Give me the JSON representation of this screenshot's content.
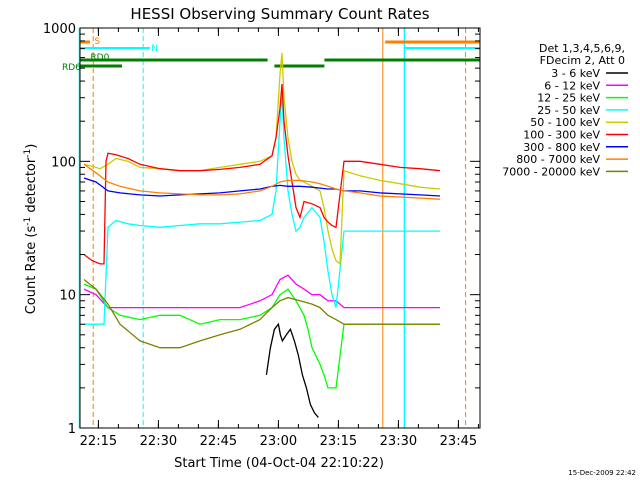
{
  "chart_data": {
    "type": "line",
    "title": "HESSI Observing Summary Count Rates",
    "xlabel": "Start Time (04-Oct-04 22:10:22)",
    "ylabel_main": "Count Rate (s",
    "ylabel_sup1": "-1",
    "ylabel_mid": " detector",
    "ylabel_sup2": "-1",
    "ylabel_end": ")",
    "yscale": "log",
    "ylim": [
      1,
      1000
    ],
    "xlim_minutes": [
      0,
      100
    ],
    "x_ticks": [
      {
        "m": 4.6,
        "label": "22:15"
      },
      {
        "m": 19.6,
        "label": "22:30"
      },
      {
        "m": 34.6,
        "label": "22:45"
      },
      {
        "m": 49.6,
        "label": "23:00"
      },
      {
        "m": 64.6,
        "label": "23:15"
      },
      {
        "m": 79.6,
        "label": "23:30"
      },
      {
        "m": 94.6,
        "label": "23:45"
      }
    ],
    "y_ticks": [
      {
        "v": 1,
        "label": "1"
      },
      {
        "v": 10,
        "label": "10"
      },
      {
        "v": 100,
        "label": "100"
      },
      {
        "v": 1000,
        "label": "1000"
      }
    ],
    "legend_header": [
      "Det 1,3,4,5,6,9,",
      "FDecim 2, Att 0"
    ],
    "series": [
      {
        "name": "3 - 6 keV",
        "color": "#000000",
        "x": [
          46.6,
          47.6,
          48.6,
          49.6,
          50.1,
          50.6,
          51.6,
          52.6,
          53.6,
          54.6,
          55.6,
          56.6,
          57.6,
          58.6,
          59.6
        ],
        "y": [
          2.5,
          4.0,
          5.5,
          6.0,
          5.0,
          4.5,
          5.0,
          5.5,
          4.5,
          3.5,
          2.5,
          2.0,
          1.5,
          1.3,
          1.2
        ]
      },
      {
        "name": "6 - 12 keV",
        "color": "#ff00ff",
        "x": [
          1,
          4,
          7,
          10,
          15,
          20,
          25,
          30,
          35,
          40,
          45,
          48,
          50,
          52,
          54,
          56,
          58,
          60,
          62,
          64,
          66,
          70,
          75,
          80,
          85,
          90
        ],
        "y": [
          11,
          10,
          8,
          8,
          8,
          8,
          8,
          8,
          8,
          8,
          9,
          10,
          13,
          14,
          12,
          11,
          10,
          10,
          9,
          9,
          8,
          8,
          8,
          8,
          8,
          8
        ]
      },
      {
        "name": "12 - 25 keV",
        "color": "#00ff00",
        "x": [
          1,
          4,
          7,
          10,
          15,
          20,
          25,
          30,
          35,
          40,
          45,
          48,
          50,
          52,
          54,
          56,
          57,
          58,
          60,
          61,
          62,
          64,
          66,
          70,
          75,
          80,
          85,
          90
        ],
        "y": [
          12,
          11,
          8,
          7,
          6.5,
          7,
          7,
          6,
          6.5,
          6.5,
          7,
          8,
          10,
          11,
          9,
          7,
          5.5,
          4,
          3,
          2.5,
          2,
          2,
          6,
          6,
          6,
          6,
          6,
          6
        ]
      },
      {
        "name": "25 - 50 keV",
        "color": "#00ffff",
        "x": [
          1,
          3,
          5,
          6,
          7,
          9,
          12,
          15,
          20,
          25,
          30,
          35,
          40,
          45,
          48,
          49,
          50,
          50.5,
          51,
          52,
          53,
          54,
          55,
          56,
          58,
          60,
          61,
          62,
          63,
          64,
          66,
          70,
          75,
          80,
          85,
          90
        ],
        "y": [
          6,
          6,
          6,
          6,
          32,
          36,
          34,
          33,
          32,
          33,
          34,
          34,
          35,
          36,
          40,
          60,
          200,
          320,
          150,
          60,
          40,
          30,
          32,
          38,
          45,
          38,
          25,
          15,
          10,
          8,
          30,
          30,
          30,
          30,
          30,
          30
        ]
      },
      {
        "name": "50 - 100 keV",
        "color": "#cccc00",
        "x": [
          1,
          3,
          5,
          7,
          9,
          12,
          15,
          20,
          25,
          30,
          35,
          40,
          45,
          48,
          49,
          50,
          50.5,
          51,
          52,
          53,
          54,
          55,
          56,
          58,
          60,
          61,
          62,
          63,
          64,
          65,
          66,
          70,
          75,
          80,
          85,
          90
        ],
        "y": [
          95,
          92,
          88,
          95,
          105,
          100,
          90,
          88,
          85,
          85,
          90,
          95,
          100,
          110,
          150,
          450,
          650,
          300,
          150,
          100,
          80,
          72,
          70,
          65,
          60,
          45,
          30,
          22,
          18,
          17,
          85,
          78,
          72,
          68,
          64,
          62
        ]
      },
      {
        "name": "100 - 300 keV",
        "color": "#ff0000",
        "x": [
          1,
          3,
          5,
          6,
          6.5,
          7,
          9,
          12,
          15,
          20,
          25,
          30,
          35,
          40,
          45,
          48,
          49,
          50,
          50.5,
          51,
          52,
          53,
          54,
          55,
          56,
          58,
          60,
          61,
          62,
          63,
          64,
          66,
          70,
          75,
          80,
          85,
          90
        ],
        "y": [
          20,
          18,
          17,
          17,
          100,
          115,
          112,
          105,
          95,
          88,
          85,
          85,
          87,
          90,
          95,
          110,
          150,
          250,
          380,
          200,
          110,
          70,
          45,
          38,
          50,
          48,
          45,
          38,
          35,
          33,
          32,
          100,
          100,
          95,
          90,
          88,
          85
        ]
      },
      {
        "name": "300 - 800 keV",
        "color": "#0000ff",
        "x": [
          1,
          4,
          7,
          10,
          15,
          20,
          25,
          30,
          35,
          40,
          45,
          48,
          50,
          52,
          55,
          58,
          60,
          62,
          64,
          66,
          70,
          75,
          80,
          85,
          90
        ],
        "y": [
          75,
          70,
          60,
          58,
          56,
          55,
          56,
          57,
          58,
          60,
          62,
          65,
          66,
          65,
          65,
          64,
          63,
          62,
          62,
          60,
          60,
          58,
          57,
          56,
          55
        ]
      },
      {
        "name": "800 - 7000 keV",
        "color": "#ff8000",
        "x": [
          1,
          4,
          7,
          10,
          15,
          20,
          25,
          30,
          35,
          40,
          45,
          48,
          50,
          52,
          55,
          58,
          60,
          62,
          64,
          66,
          70,
          75,
          80,
          85,
          90
        ],
        "y": [
          95,
          82,
          70,
          65,
          60,
          58,
          57,
          56,
          56,
          57,
          60,
          65,
          70,
          72,
          72,
          70,
          68,
          65,
          62,
          60,
          58,
          55,
          54,
          53,
          52
        ]
      },
      {
        "name": "7000 - 20000 keV",
        "color": "#808000",
        "x": [
          1,
          4,
          7,
          10,
          15,
          20,
          25,
          30,
          35,
          40,
          45,
          48,
          50,
          52,
          55,
          58,
          60,
          62,
          64,
          66,
          70,
          75,
          80,
          85,
          90
        ],
        "y": [
          13,
          11,
          8.5,
          6,
          4.5,
          4,
          4,
          4.5,
          5,
          5.5,
          6.5,
          8,
          9,
          9.5,
          9,
          8.5,
          8,
          7,
          6.5,
          6,
          6,
          6,
          6,
          6,
          6
        ]
      }
    ],
    "flags": [
      {
        "label": "S",
        "color": "#ff8000"
      },
      {
        "label": "N",
        "color": "#00ffff"
      },
      {
        "label": "RD0",
        "color": "#008000"
      },
      {
        "label": "RD6",
        "color": "#008000"
      }
    ],
    "timestamp": "15-Dec-2009 22:42"
  }
}
